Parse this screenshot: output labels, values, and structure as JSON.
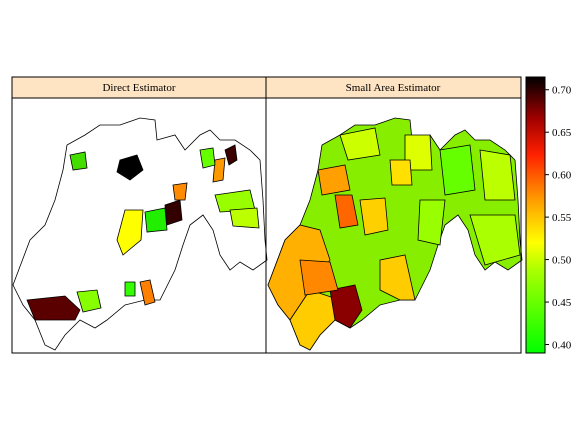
{
  "panels": [
    {
      "title": "Direct Estimator"
    },
    {
      "title": "Small Area Estimator"
    }
  ],
  "colorbar": {
    "lim": [
      0.39,
      0.715
    ],
    "ticks": [
      {
        "value": 0.4,
        "label": "0.40"
      },
      {
        "value": 0.45,
        "label": "0.45"
      },
      {
        "value": 0.5,
        "label": "0.50"
      },
      {
        "value": 0.55,
        "label": "0.55"
      },
      {
        "value": 0.6,
        "label": "0.60"
      },
      {
        "value": 0.65,
        "label": "0.65"
      },
      {
        "value": 0.7,
        "label": "0.70"
      }
    ]
  }
}
